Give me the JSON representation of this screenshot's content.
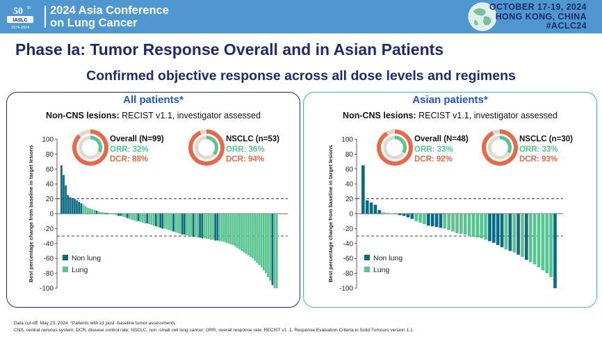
{
  "header": {
    "logo_number": "50",
    "logo_suffix": "th",
    "logo_org": "IASLC",
    "logo_years": "1974-2024",
    "conference_title_line1": "2024 Asia Conference",
    "conference_title_line2": "on Lung Cancer",
    "date_line": "OCTOBER 17-19, 2024",
    "location_line": "HONG KONG, CHINA",
    "hashtag": "#ACLC24"
  },
  "title": "Phase Ia: Tumor Response Overall and in Asian Patients",
  "subtitle": "Confirmed objective response across all dose levels and regimens",
  "footnotes": {
    "line1": "Data cut-off: May 23, 2024. *Patients with ≥1 post   -baseline tumor assessments",
    "line2": "CNS, central nervous system; DCR, disease control rate; NSCLC, non    -small cell lung cancer; ORR, overall response rate; RECIST v1   .1, Response Evaluation Criteria in Solid Tumours version 1.1"
  },
  "colors": {
    "title_navy": "#1e2a6e",
    "panel_title_blue": "#2456c8",
    "left_border": "#1e2a6e",
    "right_border": "#45b98a",
    "non_lung": "#0d6a82",
    "lung": "#56c590",
    "dcr_orange": "#e8694a",
    "donut_gray": "#e0d9d0",
    "header_blue": "#4f97cf"
  },
  "chart_data": [
    {
      "type": "bar",
      "panel_title": "All patients*",
      "subtitle_bold": "Non-CNS lesions:",
      "subtitle_rest": " RECIST v1.1, investigator assessed",
      "ylabel": "Best percentage change from baseline in target lesions",
      "ylim": [
        -100,
        100
      ],
      "yticks": [
        100,
        80,
        60,
        40,
        20,
        0,
        -20,
        -40,
        -60,
        -80,
        -100
      ],
      "reference_lines": [
        20,
        -30
      ],
      "legend": [
        {
          "name": "Non lung",
          "key": "nonlung"
        },
        {
          "name": "Lung",
          "key": "lung"
        }
      ],
      "summaries": [
        {
          "label": "Overall (N=99)",
          "orr_label": "ORR: 32%",
          "dcr_label": "DCR: 88%",
          "orr": 32,
          "dcr": 88
        },
        {
          "label": "NSCLC (n=53)",
          "orr_label": "ORR: 36%",
          "dcr_label": "DCR: 94%",
          "orr": 36,
          "dcr": 94
        }
      ],
      "values": [
        65,
        52,
        38,
        25,
        22,
        21,
        20,
        18,
        16,
        14,
        12,
        10,
        8,
        7,
        6,
        5,
        4,
        3,
        2,
        2,
        1,
        1,
        0,
        -1,
        -1,
        -2,
        -3,
        -3,
        -4,
        -5,
        -6,
        -7,
        -8,
        -9,
        -10,
        -10,
        -11,
        -12,
        -13,
        -13,
        -14,
        -15,
        -16,
        -17,
        -18,
        -19,
        -20,
        -20,
        -21,
        -22,
        -23,
        -24,
        -25,
        -26,
        -27,
        -28,
        -28,
        -29,
        -30,
        -30,
        -31,
        -31,
        -32,
        -32,
        -33,
        -33,
        -34,
        -34,
        -35,
        -35,
        -36,
        -36,
        -37,
        -37,
        -38,
        -39,
        -40,
        -41,
        -42,
        -44,
        -46,
        -48,
        -50,
        -52,
        -54,
        -56,
        -58,
        -60,
        -63,
        -66,
        -69,
        -72,
        -76,
        -80,
        -85,
        -90,
        -96,
        -100,
        -100
      ],
      "groups": [
        "N",
        "N",
        "N",
        "N",
        "N",
        "N",
        "N",
        "N",
        "N",
        "N",
        "L",
        "L",
        "L",
        "L",
        "L",
        "L",
        "N",
        "L",
        "L",
        "L",
        "N",
        "N",
        "L",
        "L",
        "L",
        "L",
        "N",
        "N",
        "L",
        "L",
        "N",
        "L",
        "L",
        "L",
        "L",
        "N",
        "L",
        "L",
        "L",
        "N",
        "L",
        "L",
        "L",
        "N",
        "L",
        "N",
        "N",
        "L",
        "L",
        "L",
        "L",
        "N",
        "L",
        "L",
        "L",
        "N",
        "N",
        "L",
        "L",
        "L",
        "N",
        "L",
        "L",
        "N",
        "N",
        "L",
        "L",
        "L",
        "L",
        "L",
        "N",
        "N",
        "L",
        "L",
        "L",
        "L",
        "L",
        "L",
        "L",
        "L",
        "L",
        "L",
        "L",
        "L",
        "L",
        "L",
        "L",
        "L",
        "L",
        "L",
        "L",
        "L",
        "L",
        "L",
        "L",
        "L",
        "N",
        "L",
        "L"
      ]
    },
    {
      "type": "bar",
      "panel_title": "Asian patients*",
      "subtitle_bold": "Non-CNS lesions:",
      "subtitle_rest": " RECIST v1.1, investigator assessed",
      "ylabel": "Best percentage change from baseline in target lesions",
      "ylim": [
        -100,
        100
      ],
      "yticks": [
        100,
        80,
        60,
        40,
        20,
        0,
        -20,
        -40,
        -60,
        -80,
        -100
      ],
      "reference_lines": [
        20,
        -30
      ],
      "legend": [
        {
          "name": "Non lung",
          "key": "nonlung"
        },
        {
          "name": "Lung",
          "key": "lung"
        }
      ],
      "summaries": [
        {
          "label": "Overall (N=48)",
          "orr_label": "ORR: 33%",
          "dcr_label": "DCR: 92%",
          "orr": 33,
          "dcr": 92
        },
        {
          "label": "NSCLC (n=30)",
          "orr_label": "ORR: 33%",
          "dcr_label": "DCR: 93%",
          "orr": 33,
          "dcr": 93
        }
      ],
      "values": [
        65,
        18,
        15,
        12,
        5,
        2,
        1,
        0,
        -1,
        -2,
        -3,
        -5,
        -7,
        -10,
        -12,
        -14,
        -16,
        -17,
        -18,
        -19,
        -20,
        -22,
        -24,
        -26,
        -27,
        -28,
        -30,
        -31,
        -32,
        -33,
        -35,
        -37,
        -39,
        -42,
        -45,
        -48,
        -50,
        -52,
        -55,
        -58,
        -62,
        -65,
        -68,
        -72,
        -76,
        -80,
        -85,
        -100
      ],
      "groups": [
        "N",
        "N",
        "N",
        "N",
        "N",
        "L",
        "L",
        "L",
        "L",
        "N",
        "N",
        "N",
        "N",
        "L",
        "L",
        "L",
        "N",
        "N",
        "N",
        "N",
        "L",
        "L",
        "L",
        "L",
        "L",
        "L",
        "L",
        "L",
        "L",
        "L",
        "L",
        "N",
        "N",
        "N",
        "N",
        "L",
        "N",
        "L",
        "N",
        "L",
        "N",
        "L",
        "L",
        "L",
        "L",
        "L",
        "L",
        "N"
      ]
    }
  ]
}
